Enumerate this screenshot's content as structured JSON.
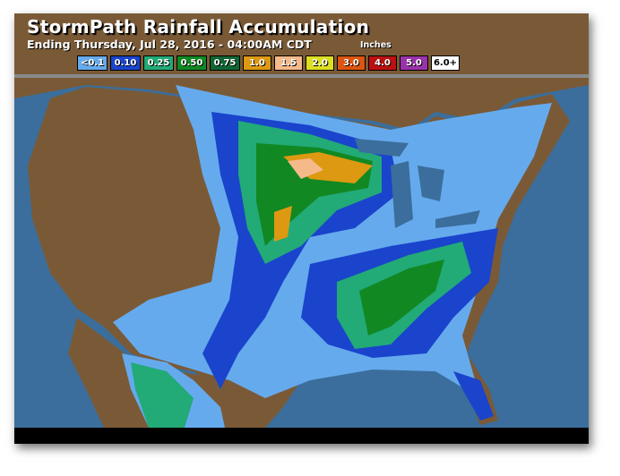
{
  "header": {
    "title": "StormPath Rainfall Accumulation",
    "subtitle": "Ending Thursday, Jul 28, 2016 - 04:00AM CDT",
    "units": "Inches"
  },
  "legend": [
    {
      "label": "<0.1",
      "color": "#66aaee"
    },
    {
      "label": "0.10",
      "color": "#1a44cc"
    },
    {
      "label": "0.25",
      "color": "#22aa77"
    },
    {
      "label": "0.50",
      "color": "#118822"
    },
    {
      "label": "0.75",
      "color": "#116633"
    },
    {
      "label": "1.0",
      "color": "#dd9911"
    },
    {
      "label": "1.5",
      "color": "#f5b98a"
    },
    {
      "label": "2.0",
      "color": "#dddd22"
    },
    {
      "label": "3.0",
      "color": "#dd5511"
    },
    {
      "label": "4.0",
      "color": "#bb1111"
    },
    {
      "label": "5.0",
      "color": "#9933aa"
    },
    {
      "label": "6.0+",
      "color": "#ffffff"
    }
  ],
  "colors": {
    "ocean": "#3b6e9c",
    "land": "#7a5a36"
  }
}
